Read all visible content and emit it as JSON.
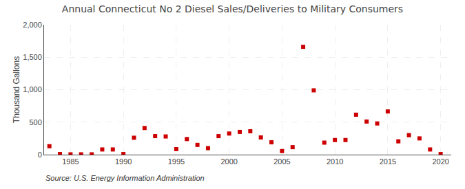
{
  "chart_data": {
    "type": "scatter",
    "title": "Annual Connecticut No 2 Diesel Sales/Deliveries to Military Consumers",
    "ylabel": "Thousand Gallons",
    "annotations": [
      "Source: U.S. Energy Information Administration"
    ],
    "x": [
      1983,
      1984,
      1985,
      1986,
      1987,
      1988,
      1989,
      1990,
      1991,
      1992,
      1993,
      1994,
      1995,
      1996,
      1997,
      1998,
      1999,
      2000,
      2001,
      2002,
      2003,
      2004,
      2005,
      2006,
      2007,
      2008,
      2009,
      2010,
      2011,
      2012,
      2013,
      2014,
      2015,
      2016,
      2017,
      2018,
      2019,
      2020
    ],
    "values": [
      130,
      10,
      5,
      5,
      5,
      80,
      80,
      10,
      260,
      410,
      285,
      280,
      85,
      240,
      150,
      100,
      285,
      325,
      350,
      360,
      265,
      190,
      55,
      115,
      1660,
      990,
      185,
      225,
      225,
      615,
      510,
      480,
      665,
      205,
      300,
      250,
      80,
      10
    ],
    "color": "#cc0000",
    "marker": "square",
    "xlim": [
      1982.5,
      2021
    ],
    "xticks": [
      1985,
      1990,
      1995,
      2000,
      2005,
      2010,
      2015,
      2020
    ],
    "ylim": [
      0,
      2000
    ],
    "yticks": [
      0,
      500,
      {
        "value": 1000,
        "label": "1,000"
      },
      {
        "value": 1500,
        "label": "1,500"
      },
      {
        "value": 2000,
        "label": "2,000"
      }
    ],
    "grid": true
  }
}
